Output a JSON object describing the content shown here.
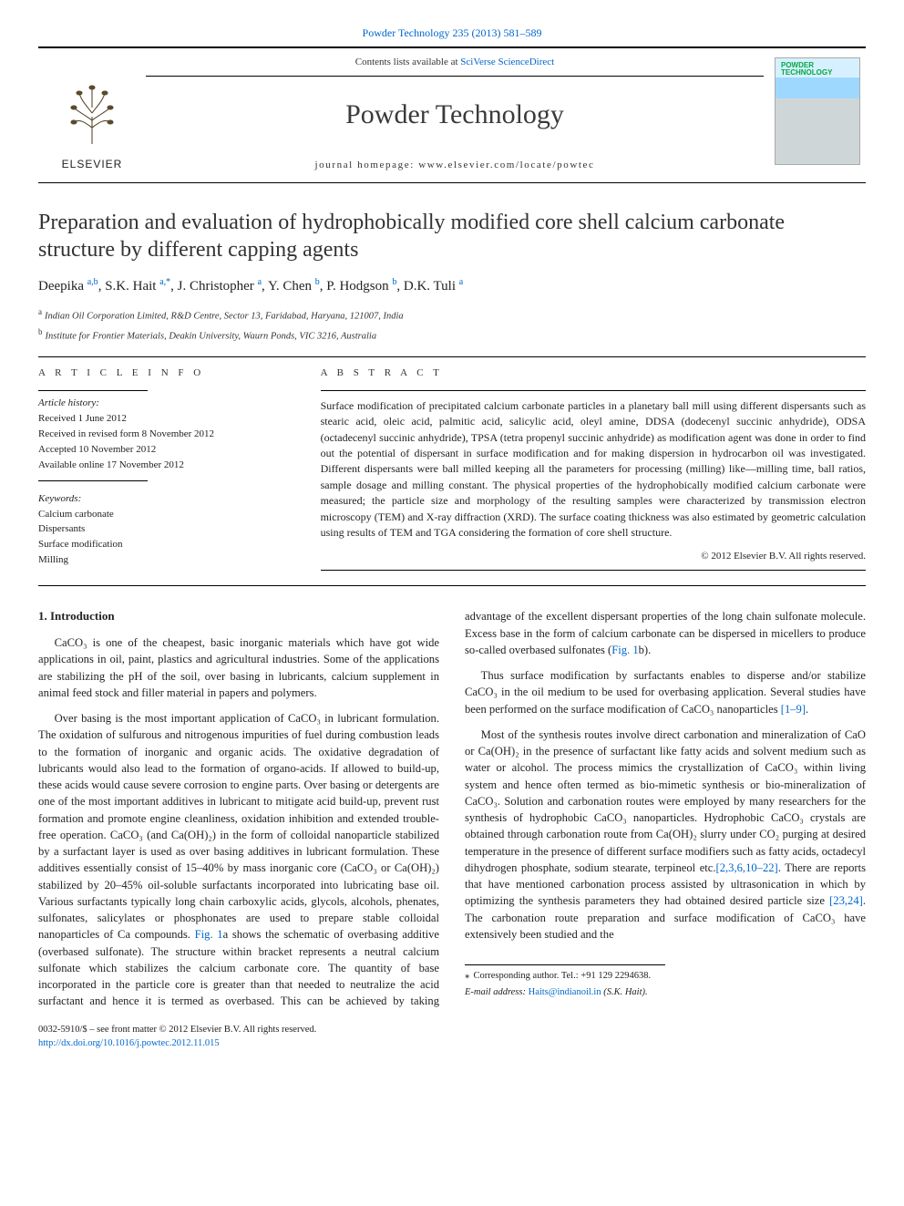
{
  "journal": {
    "top_link_label": "Powder Technology 235 (2013) 581–589",
    "contents_prefix": "Contents lists available at ",
    "contents_link": "SciVerse ScienceDirect",
    "title": "Powder Technology",
    "homepage_prefix": "journal homepage: ",
    "homepage": "www.elsevier.com/locate/powtec",
    "elsevier_label": "ELSEVIER",
    "cover_label": "POWDER TECHNOLOGY"
  },
  "article": {
    "title": "Preparation and evaluation of hydrophobically modified core shell calcium carbonate structure by different capping agents",
    "authors_html": "Deepika <sup class='aff-sup'>a,b</sup>, S.K. Hait <sup class='aff-sup'>a,</sup><sup class='corr-star'>*</sup>, J. Christopher <sup class='aff-sup'>a</sup>, Y. Chen <sup class='aff-sup'>b</sup>, P. Hodgson <sup class='aff-sup'>b</sup>, D.K. Tuli <sup class='aff-sup'>a</sup>",
    "affiliations": [
      {
        "sup": "a",
        "text": "Indian Oil Corporation Limited, R&D Centre, Sector 13, Faridabad, Haryana, 121007, India"
      },
      {
        "sup": "b",
        "text": "Institute for Frontier Materials, Deakin University, Waurn Ponds, VIC 3216, Australia"
      }
    ]
  },
  "info": {
    "heading": "A R T I C L E   I N F O",
    "history_heading": "Article history:",
    "history": [
      "Received 1 June 2012",
      "Received in revised form 8 November 2012",
      "Accepted 10 November 2012",
      "Available online 17 November 2012"
    ],
    "keywords_heading": "Keywords:",
    "keywords": [
      "Calcium carbonate",
      "Dispersants",
      "Surface modification",
      "Milling"
    ]
  },
  "abstract": {
    "heading": "A B S T R A C T",
    "text": "Surface modification of precipitated calcium carbonate particles in a planetary ball mill using different dispersants such as stearic acid, oleic acid, palmitic acid, salicylic acid, oleyl amine, DDSA (dodecenyl succinic anhydride), ODSA (octadecenyl succinic anhydride), TPSA (tetra propenyl succinic anhydride) as modification agent was done in order to find out the potential of dispersant in surface modification and for making dispersion in hydrocarbon oil was investigated. Different dispersants were ball milled keeping all the parameters for processing (milling) like—milling time, ball ratios, sample dosage and milling constant. The physical properties of the hydrophobically modified calcium carbonate were measured; the particle size and morphology of the resulting samples were characterized by transmission electron microscopy (TEM) and X-ray diffraction (XRD). The surface coating thickness was also estimated by geometric calculation using results of TEM and TGA considering the formation of core shell structure.",
    "copyright": "© 2012 Elsevier B.V. All rights reserved."
  },
  "body": {
    "section1_heading": "1. Introduction",
    "p1": "CaCO₃ is one of the cheapest, basic inorganic materials which have got wide applications in oil, paint, plastics and agricultural industries. Some of the applications are stabilizing the pH of the soil, over basing in lubricants, calcium supplement in animal feed stock and filler material in papers and polymers.",
    "p2a": "Over basing is the most important application of CaCO₃ in lubricant formulation. The oxidation of sulfurous and nitrogenous impurities of fuel during combustion leads to the formation of inorganic and organic acids. The oxidative degradation of lubricants would also lead to the formation of organo-acids. If allowed to build-up, these acids would cause severe corrosion to engine parts. Over basing or detergents are one of the most important additives in lubricant to mitigate acid build-up, prevent rust formation and promote engine cleanliness, oxidation inhibition and extended trouble-free operation. CaCO₃ (and Ca(OH)₂) in the form of colloidal nanoparticle stabilized by a surfactant layer is used as over basing additives in lubricant formulation. These additives essentially consist of 15–40% by mass inorganic core (CaCO₃ or Ca(OH)₂) stabilized by 20–45% oil-soluble surfactants incorporated into lubricating base oil. Various surfactants typically long chain carboxylic acids, glycols, alcohols, phenates, sulfonates, salicylates or phosphonates are used to prepare stable colloidal nanoparticles of Ca compounds. ",
    "p2_fig1a": "Fig. 1",
    "p2b": "a shows the schematic of overbasing additive (overbased sulfonate). The structure within bracket represents a neutral calcium sulfonate which stabilizes the calcium carbonate core. The quantity of base incorporated in the particle core is greater than that needed to neutralize the acid surfactant and hence it is termed as overbased. This can be achieved by taking advantage of the excellent dispersant properties of the long chain sulfonate molecule. Excess base in the form of calcium carbonate can be dispersed in micellers to produce so-called overbased sulfonates (",
    "p2_fig1b": "Fig. 1",
    "p2c": "b).",
    "p3a": "Thus surface modification by surfactants enables to disperse and/or stabilize CaCO₃ in the oil medium to be used for overbasing application. Several studies have been performed on the surface modification of CaCO₃ nanoparticles ",
    "p3_ref": "[1–9]",
    "p3b": ".",
    "p4a": "Most of the synthesis routes involve direct carbonation and mineralization of CaO or Ca(OH)₂ in the presence of surfactant like fatty acids and solvent medium such as water or alcohol. The process mimics the crystallization of CaCO₃ within living system and hence often termed as bio-mimetic synthesis or bio-mineralization of CaCO₃. Solution and carbonation routes were employed by many researchers for the synthesis of hydrophobic CaCO₃ nanoparticles. Hydrophobic CaCO₃ crystals are obtained through carbonation route from Ca(OH)₂ slurry under CO₂ purging at desired temperature in the presence of different surface modifiers such as fatty acids, octadecyl dihydrogen phosphate, sodium stearate, terpineol etc.",
    "p4_ref1": "[2,3,6,10–22]",
    "p4b": ". There are reports that have mentioned carbonation process assisted by ultrasonication in which by optimizing the synthesis parameters they had obtained desired particle size ",
    "p4_ref2": "[23,24]",
    "p4c": ". The carbonation route preparation and surface modification of CaCO₃ have extensively been studied and the"
  },
  "footer": {
    "corr_label": "Corresponding author. Tel.: +91 129 2294638.",
    "email_label": "E-mail address:",
    "email": "Haits@indianoil.in",
    "email_person": "(S.K. Hait).",
    "front_matter": "0032-5910/$ – see front matter © 2012 Elsevier B.V. All rights reserved.",
    "doi": "http://dx.doi.org/10.1016/j.powtec.2012.11.015"
  },
  "colors": {
    "link": "#0066cc",
    "text": "#222222",
    "rule": "#000000"
  }
}
